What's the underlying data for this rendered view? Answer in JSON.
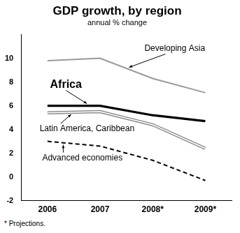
{
  "chart_data": {
    "type": "line",
    "title": "GDP growth, by region",
    "subtitle": "annual % change",
    "footnote": "* Projections.",
    "categories": [
      "2006",
      "2007",
      "2008*",
      "2009*"
    ],
    "series": [
      {
        "name": "Developing Asia",
        "color": "#999999",
        "line_style": "solid",
        "values": [
          9.8,
          10.0,
          8.3,
          7.1
        ]
      },
      {
        "name": "Africa",
        "color": "#000000",
        "line_style": "solid",
        "values": [
          6.0,
          6.0,
          5.2,
          4.7
        ]
      },
      {
        "name": "Latin America, Caribbean",
        "color": "#8c8c8c",
        "line_style": "double",
        "values": [
          5.4,
          5.5,
          4.4,
          2.4
        ]
      },
      {
        "name": "Advanced economies",
        "color": "#000000",
        "line_style": "dashed",
        "values": [
          3.0,
          2.6,
          1.4,
          -0.3
        ]
      }
    ],
    "ylim": [
      -2,
      12
    ],
    "yticks": [
      -2,
      0,
      2,
      4,
      6,
      8,
      10
    ],
    "grid": false
  }
}
